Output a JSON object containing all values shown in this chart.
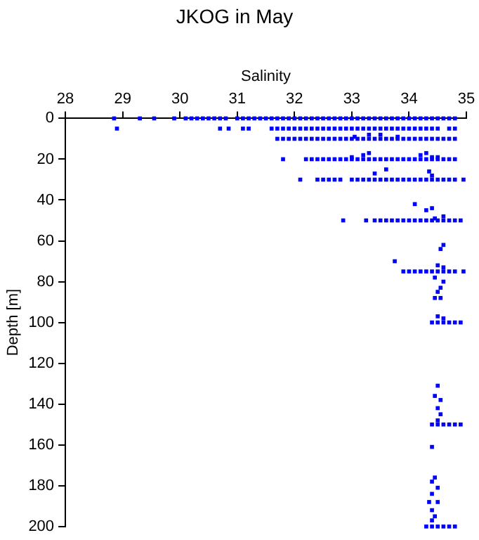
{
  "chart_data": {
    "type": "scatter",
    "title": "JKOG in May",
    "xlabel": "Salinity",
    "ylabel": "Depth [m]",
    "xlim": [
      28,
      35
    ],
    "xticks": [
      28,
      29,
      30,
      31,
      32,
      33,
      34,
      35
    ],
    "ylim": [
      200,
      0
    ],
    "yticks": [
      0,
      20,
      40,
      60,
      80,
      100,
      120,
      140,
      160,
      180,
      200
    ],
    "grid": false,
    "legend": false,
    "marker": "square",
    "series": [
      {
        "color": "#0000ff",
        "x": [
          28.85,
          29.3,
          29.55,
          29.9,
          30.1,
          30.2,
          30.3,
          30.4,
          30.5,
          30.6,
          30.7,
          30.8,
          31.0,
          31.1,
          31.2,
          31.3,
          31.4,
          31.5,
          31.6,
          31.7,
          31.8,
          31.9,
          32.0,
          32.1,
          32.2,
          32.3,
          32.4,
          32.5,
          32.6,
          32.7,
          32.8,
          32.9,
          33.0,
          33.1,
          33.2,
          33.3,
          33.4,
          33.5,
          33.6,
          33.7,
          33.8,
          33.9,
          34.0,
          34.1,
          34.2,
          34.3,
          34.4,
          34.5,
          34.6,
          34.7,
          34.8
        ],
        "values": [
          0,
          0,
          0,
          0,
          0,
          0,
          0,
          0,
          0,
          0,
          0,
          0,
          0,
          0,
          0,
          0,
          0,
          0,
          0,
          0,
          0,
          0,
          0,
          0,
          0,
          0,
          0,
          0,
          0,
          0,
          0,
          0,
          0,
          0,
          0,
          0,
          0,
          0,
          0,
          0,
          0,
          0,
          0,
          0,
          0,
          0,
          0,
          0,
          0,
          0,
          0
        ]
      },
      {
        "color": "#0000ff",
        "x": [
          28.9,
          30.7,
          30.85,
          31.1,
          31.2,
          31.6,
          31.7,
          31.8,
          31.9,
          32.0,
          32.1,
          32.2,
          32.3,
          32.4,
          32.5,
          32.6,
          32.7,
          32.8,
          32.9,
          33.0,
          33.1,
          33.2,
          33.3,
          33.4,
          33.5,
          33.6,
          33.7,
          33.8,
          33.9,
          34.0,
          34.1,
          34.2,
          34.3,
          34.4,
          34.5,
          34.7,
          34.8
        ],
        "values": [
          5,
          5,
          5,
          5,
          5,
          5,
          5,
          5,
          5,
          5,
          5,
          5,
          5,
          5,
          5,
          5,
          5,
          5,
          5,
          5,
          5,
          5,
          5,
          5,
          5,
          5,
          5,
          5,
          5,
          5,
          5,
          5,
          5,
          5,
          5,
          5,
          5
        ]
      },
      {
        "color": "#0000ff",
        "x": [
          31.7,
          31.8,
          31.9,
          32.0,
          32.1,
          32.2,
          32.3,
          32.4,
          32.5,
          32.6,
          32.7,
          32.8,
          32.9,
          33.0,
          33.1,
          33.2,
          33.3,
          33.4,
          33.5,
          33.6,
          33.7,
          33.8,
          33.9,
          34.0,
          34.1,
          34.2,
          34.3,
          34.4,
          34.5,
          34.6,
          34.7,
          34.8
        ],
        "values": [
          10,
          10,
          10,
          10,
          10,
          10,
          10,
          10,
          10,
          10,
          10,
          10,
          10,
          10,
          10,
          10,
          10,
          10,
          10,
          10,
          10,
          10,
          10,
          10,
          10,
          10,
          10,
          10,
          10,
          10,
          10,
          10
        ]
      },
      {
        "color": "#0000ff",
        "x": [
          31.8,
          32.2,
          32.3,
          32.4,
          32.5,
          32.6,
          32.7,
          32.8,
          32.9,
          33.0,
          33.1,
          33.2,
          33.3,
          33.4,
          33.5,
          33.6,
          33.7,
          33.8,
          33.9,
          34.0,
          34.1,
          34.2,
          34.3,
          34.4,
          34.5,
          34.6,
          34.7,
          34.8
        ],
        "values": [
          20,
          20,
          20,
          20,
          20,
          20,
          20,
          20,
          20,
          20,
          20,
          20,
          20,
          20,
          20,
          20,
          20,
          20,
          20,
          20,
          20,
          20,
          20,
          20,
          20,
          20,
          20,
          20
        ]
      },
      {
        "color": "#0000ff",
        "x": [
          32.1,
          32.4,
          32.5,
          32.6,
          32.7,
          32.8,
          33.0,
          33.1,
          33.2,
          33.3,
          33.4,
          33.5,
          33.6,
          33.7,
          33.8,
          33.9,
          34.0,
          34.1,
          34.2,
          34.3,
          34.4,
          34.5,
          34.6,
          34.7,
          34.8,
          34.95
        ],
        "values": [
          30,
          30,
          30,
          30,
          30,
          30,
          30,
          30,
          30,
          30,
          30,
          30,
          30,
          30,
          30,
          30,
          30,
          30,
          30,
          30,
          30,
          30,
          30,
          30,
          30,
          30
        ]
      },
      {
        "color": "#0000ff",
        "x": [
          32.85,
          33.25,
          33.4,
          33.5,
          33.6,
          33.7,
          33.8,
          33.9,
          34.0,
          34.1,
          34.2,
          34.3,
          34.4,
          34.5,
          34.6,
          34.7,
          34.8,
          34.9
        ],
        "values": [
          50,
          50,
          50,
          50,
          50,
          50,
          50,
          50,
          50,
          50,
          50,
          50,
          50,
          50,
          50,
          50,
          50,
          50
        ]
      },
      {
        "color": "#0000ff",
        "x": [
          33.9,
          34.0,
          34.1,
          34.2,
          34.3,
          34.4,
          34.5,
          34.6,
          34.7,
          34.8,
          34.95
        ],
        "values": [
          75,
          75,
          75,
          75,
          75,
          75,
          75,
          75,
          75,
          75,
          75
        ]
      },
      {
        "color": "#0000ff",
        "x": [
          34.4,
          34.5,
          34.6,
          34.7,
          34.8,
          34.9
        ],
        "values": [
          100,
          100,
          100,
          100,
          100,
          100
        ]
      },
      {
        "color": "#0000ff",
        "x": [
          34.4,
          34.5,
          34.6,
          34.7,
          34.8,
          34.9
        ],
        "values": [
          150,
          150,
          150,
          150,
          150,
          150
        ]
      },
      {
        "color": "#0000ff",
        "x": [
          34.3,
          34.4,
          34.5,
          34.6,
          34.7,
          34.8
        ],
        "values": [
          200,
          200,
          200,
          200,
          200,
          200
        ]
      },
      {
        "color": "#0000ff",
        "x": [
          33.05,
          33.3,
          33.5,
          33.8,
          33.0,
          33.2,
          33.3,
          34.2,
          34.3,
          34.4,
          34.5,
          33.4,
          33.6,
          34.35,
          34.4,
          34.1,
          34.3,
          34.4,
          34.45,
          34.6,
          34.6,
          34.55,
          33.75,
          34.5,
          34.6,
          34.45,
          34.6,
          34.55,
          34.5,
          34.45,
          34.55,
          34.5,
          34.6,
          34.5,
          34.45,
          34.55,
          34.5,
          34.55,
          34.5,
          34.4,
          34.45,
          34.4,
          34.5,
          34.4,
          34.35,
          34.5,
          34.4,
          34.45,
          34.4
        ],
        "values": [
          9,
          8,
          8,
          9,
          19,
          18,
          17,
          18,
          17,
          19,
          19,
          27,
          25,
          26,
          28,
          42,
          45,
          44,
          49,
          48,
          62,
          64,
          70,
          72,
          73,
          78,
          80,
          83,
          85,
          88,
          88,
          97,
          98,
          131,
          136,
          138,
          142,
          145,
          148,
          161,
          176,
          178,
          181,
          184,
          188,
          188,
          192,
          195,
          197
        ]
      }
    ]
  }
}
